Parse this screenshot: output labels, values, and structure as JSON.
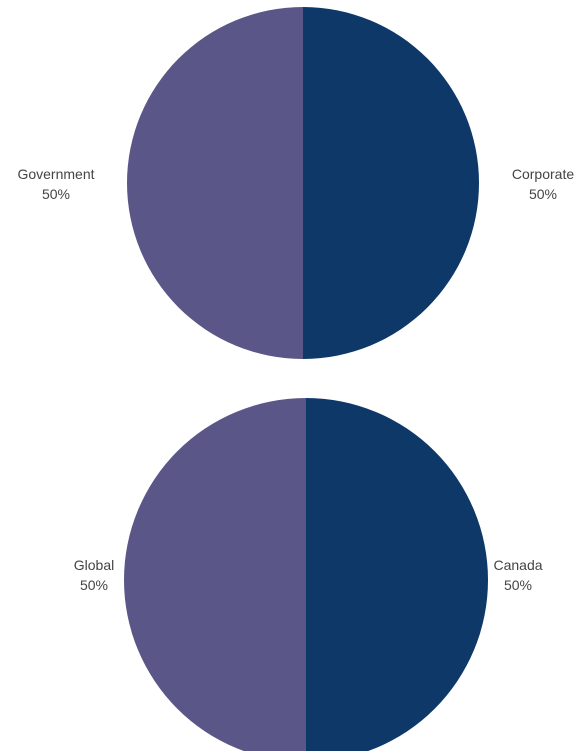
{
  "chart_data": [
    {
      "type": "pie",
      "title": "",
      "slices": [
        {
          "label": "Corporate",
          "value": 50,
          "percent_label": "50%",
          "color": "#0d3868"
        },
        {
          "label": "Government",
          "value": 50,
          "percent_label": "50%",
          "color": "#5a5688"
        }
      ]
    },
    {
      "type": "pie",
      "title": "",
      "slices": [
        {
          "label": "Canada",
          "value": 50,
          "percent_label": "50%",
          "color": "#0d3868"
        },
        {
          "label": "Global",
          "value": 50,
          "percent_label": "50%",
          "color": "#5a5688"
        }
      ]
    }
  ]
}
